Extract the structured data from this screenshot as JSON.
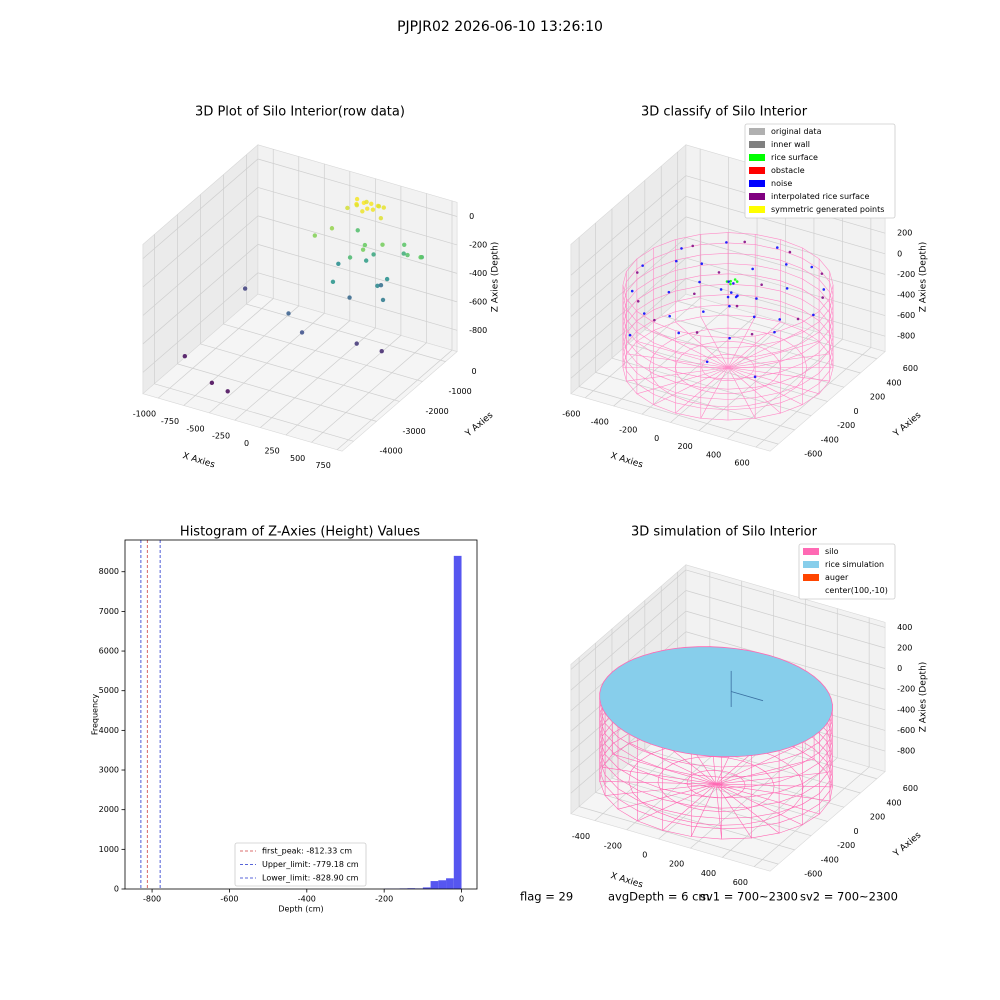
{
  "title": "PJPJR02 2026-06-10 13:26:10",
  "chart_data": [
    {
      "type": "scatter3d",
      "title": "3D Plot of Silo Interior(row data)",
      "xlabel": "X Axies",
      "ylabel": "Y Axies",
      "zlabel": "Z Axies (Depth)",
      "xlim": [
        -1150,
        800
      ],
      "ylim": [
        -4500,
        500
      ],
      "zlim": [
        -950,
        100
      ],
      "xticks": [
        -1000,
        -750,
        -500,
        -250,
        0,
        250,
        500,
        750
      ],
      "yticks": [
        -4000,
        -3000,
        -2000,
        -1000,
        0
      ],
      "zticks": [
        -800,
        -600,
        -400,
        -200,
        0
      ],
      "colormap": "viridis",
      "points": [
        [
          0,
          0,
          0
        ],
        [
          50,
          100,
          -10
        ],
        [
          -50,
          -100,
          -5
        ],
        [
          100,
          -50,
          -20
        ],
        [
          -100,
          150,
          -15
        ],
        [
          150,
          200,
          -30
        ],
        [
          30,
          -200,
          -25
        ],
        [
          -80,
          50,
          -40
        ],
        [
          120,
          80,
          -8
        ],
        [
          60,
          -120,
          -12
        ],
        [
          -30,
          250,
          -35
        ],
        [
          200,
          -150,
          -45
        ],
        [
          80,
          300,
          -50
        ],
        [
          -150,
          -50,
          -60
        ],
        [
          -200,
          -500,
          -150
        ],
        [
          250,
          -300,
          -200
        ],
        [
          350,
          200,
          -250
        ],
        [
          -300,
          -800,
          -180
        ],
        [
          450,
          -100,
          -260
        ],
        [
          100,
          -400,
          -220
        ],
        [
          0,
          -600,
          -300
        ],
        [
          -150,
          400,
          -280
        ],
        [
          300,
          400,
          -350
        ],
        [
          500,
          300,
          -320
        ],
        [
          50,
          200,
          -380
        ],
        [
          150,
          -700,
          -200
        ],
        [
          600,
          -200,
          -230
        ],
        [
          -100,
          -900,
          -450
        ],
        [
          200,
          -300,
          -500
        ],
        [
          0,
          100,
          -420
        ],
        [
          -250,
          0,
          -480
        ],
        [
          300,
          -500,
          -550
        ],
        [
          100,
          300,
          -600
        ],
        [
          -50,
          -400,
          -620
        ],
        [
          250,
          -100,
          -470
        ],
        [
          -400,
          -1500,
          -650
        ],
        [
          -200,
          -1800,
          -700
        ],
        [
          200,
          -1200,
          -780
        ],
        [
          400,
          -1000,
          -820
        ],
        [
          -1100,
          -2900,
          -900
        ],
        [
          -700,
          -3500,
          -920
        ],
        [
          -500,
          -3700,
          -910
        ],
        [
          -1050,
          -500,
          -750
        ]
      ]
    },
    {
      "type": "scatter3d",
      "title": "3D classify of Silo Interior",
      "xlabel": "X Axies",
      "ylabel": "Y Axies",
      "zlabel": "Z Axies (Depth)",
      "xlim": [
        -700,
        700
      ],
      "ylim": [
        -700,
        700
      ],
      "zlim": [
        -950,
        500
      ],
      "xticks": [
        -600,
        -400,
        -200,
        0,
        200,
        400,
        600
      ],
      "yticks": [
        -600,
        -400,
        -200,
        0,
        200,
        400,
        600
      ],
      "zticks": [
        -800,
        -600,
        -400,
        -200,
        0,
        200
      ],
      "cylinder": {
        "radius": 640,
        "top": -100,
        "bottom": -900,
        "color": "#ff8cc8"
      },
      "series": [
        {
          "name": "original data",
          "color": "#b0b0b0",
          "points": []
        },
        {
          "name": "inner wall",
          "color": "#808080",
          "points": []
        },
        {
          "name": "rice surface",
          "color": "#00ff00",
          "points": [
            [
              -10,
              50,
              -100
            ],
            [
              10,
              70,
              -90
            ],
            [
              0,
              30,
              -110
            ],
            [
              30,
              60,
              -95
            ],
            [
              -30,
              40,
              -105
            ]
          ]
        },
        {
          "name": "obstacle",
          "color": "#ff0000",
          "points": []
        },
        {
          "name": "noise",
          "color": "#0000ff",
          "points": [
            [
              -500,
              -300,
              -150
            ],
            [
              -300,
              -500,
              -150
            ],
            [
              0,
              -600,
              -150
            ],
            [
              300,
              -500,
              -150
            ],
            [
              500,
              -300,
              -150
            ],
            [
              600,
              0,
              -150
            ],
            [
              500,
              300,
              -150
            ],
            [
              300,
              500,
              -150
            ],
            [
              0,
              600,
              -150
            ],
            [
              -300,
              500,
              -150
            ],
            [
              -500,
              300,
              -150
            ],
            [
              -600,
              0,
              -150
            ],
            [
              -300,
              -200,
              -150
            ],
            [
              0,
              -300,
              -150
            ],
            [
              300,
              -200,
              -150
            ],
            [
              300,
              200,
              -150
            ],
            [
              0,
              300,
              -150
            ],
            [
              -300,
              200,
              -150
            ],
            [
              -200,
              0,
              -150
            ],
            [
              200,
              0,
              -150
            ],
            [
              -150,
              -450,
              -150
            ],
            [
              150,
              450,
              -150
            ],
            [
              450,
              -150,
              -150
            ],
            [
              -450,
              150,
              -150
            ],
            [
              -30,
              60,
              -120
            ],
            [
              0,
              40,
              -200
            ],
            [
              20,
              80,
              -250
            ],
            [
              -60,
              20,
              -180
            ],
            [
              10,
              0,
              -300
            ],
            [
              -20,
              100,
              -160
            ],
            [
              40,
              30,
              -220
            ],
            [
              -40,
              70,
              -280
            ],
            [
              -400,
              -500,
              -400
            ],
            [
              450,
              -450,
              -500
            ],
            [
              200,
              -600,
              -350
            ]
          ]
        },
        {
          "name": "interpolated rice surface",
          "color": "#800080",
          "points": [
            [
              -400,
              -400,
              -140
            ],
            [
              -200,
              -550,
              -140
            ],
            [
              100,
              -550,
              -140
            ],
            [
              400,
              -400,
              -140
            ],
            [
              550,
              -100,
              -140
            ],
            [
              550,
              200,
              -140
            ],
            [
              400,
              450,
              -140
            ],
            [
              100,
              580,
              -140
            ],
            [
              -200,
              550,
              -140
            ],
            [
              -450,
              350,
              -140
            ],
            [
              -580,
              -100,
              -140
            ],
            [
              -150,
              -150,
              -140
            ],
            [
              150,
              150,
              -140
            ],
            [
              150,
              -150,
              -140
            ],
            [
              -150,
              150,
              -140
            ]
          ]
        },
        {
          "name": "symmetric generated points",
          "color": "#ffff00",
          "points": []
        }
      ]
    },
    {
      "type": "histogram",
      "title": "Histogram of Z-Axies (Height) Values",
      "xlabel": "Depth (cm)",
      "ylabel": "Frequency",
      "xlim": [
        -870,
        40
      ],
      "ylim": [
        0,
        8800
      ],
      "xticks": [
        -800,
        -600,
        -400,
        -200,
        0
      ],
      "yticks": [
        0,
        1000,
        2000,
        3000,
        4000,
        5000,
        6000,
        7000,
        8000
      ],
      "color": "#4444ee",
      "bins": [
        -200,
        -180,
        -160,
        -140,
        -120,
        -100,
        -80,
        -60,
        -40,
        -20,
        0
      ],
      "values": [
        10,
        10,
        15,
        20,
        15,
        40,
        200,
        220,
        270,
        8400
      ],
      "vlines": [
        {
          "label": "first_peak: -812.33 cm",
          "value": -812.33,
          "color": "#d04040"
        },
        {
          "label": "Upper_limit: -779.18 cm",
          "value": -779.18,
          "color": "#2233cc"
        },
        {
          "label": "Lower_limit: -828.90 cm",
          "value": -828.9,
          "color": "#2233cc"
        }
      ]
    },
    {
      "type": "scatter3d",
      "title": "3D simulation of Silo Interior",
      "xlabel": "X Axies",
      "ylabel": "Y Axies",
      "zlabel": "Z Axies (Depth)",
      "xlim": [
        -550,
        700
      ],
      "ylim": [
        -700,
        700
      ],
      "zlim": [
        -1000,
        450
      ],
      "xticks": [
        -400,
        -200,
        0,
        200,
        400,
        600
      ],
      "yticks": [
        -600,
        -400,
        -200,
        0,
        200,
        400,
        600
      ],
      "zticks": [
        -800,
        -600,
        -400,
        -200,
        0,
        200,
        400
      ],
      "series": [
        {
          "name": "silo",
          "color": "#ff69b4",
          "cylinder": {
            "radius": 650,
            "top": -150,
            "bottom": -950
          }
        },
        {
          "name": "rice simulation",
          "color": "#87ceeb",
          "level": -150,
          "radius": 650
        },
        {
          "name": "auger",
          "color": "#ff4500",
          "points": [
            [
              100,
              -10,
              -150
            ],
            [
              100,
              -10,
              200
            ],
            [
              100,
              -10,
              0
            ],
            [
              300,
              -10,
              0
            ]
          ]
        },
        {
          "name": "center(100,-10)"
        }
      ]
    }
  ],
  "footer": [
    "flag = 29",
    "avgDepth = 6 cm",
    "sv1 = 700~2300",
    "sv2 = 700~2300"
  ]
}
